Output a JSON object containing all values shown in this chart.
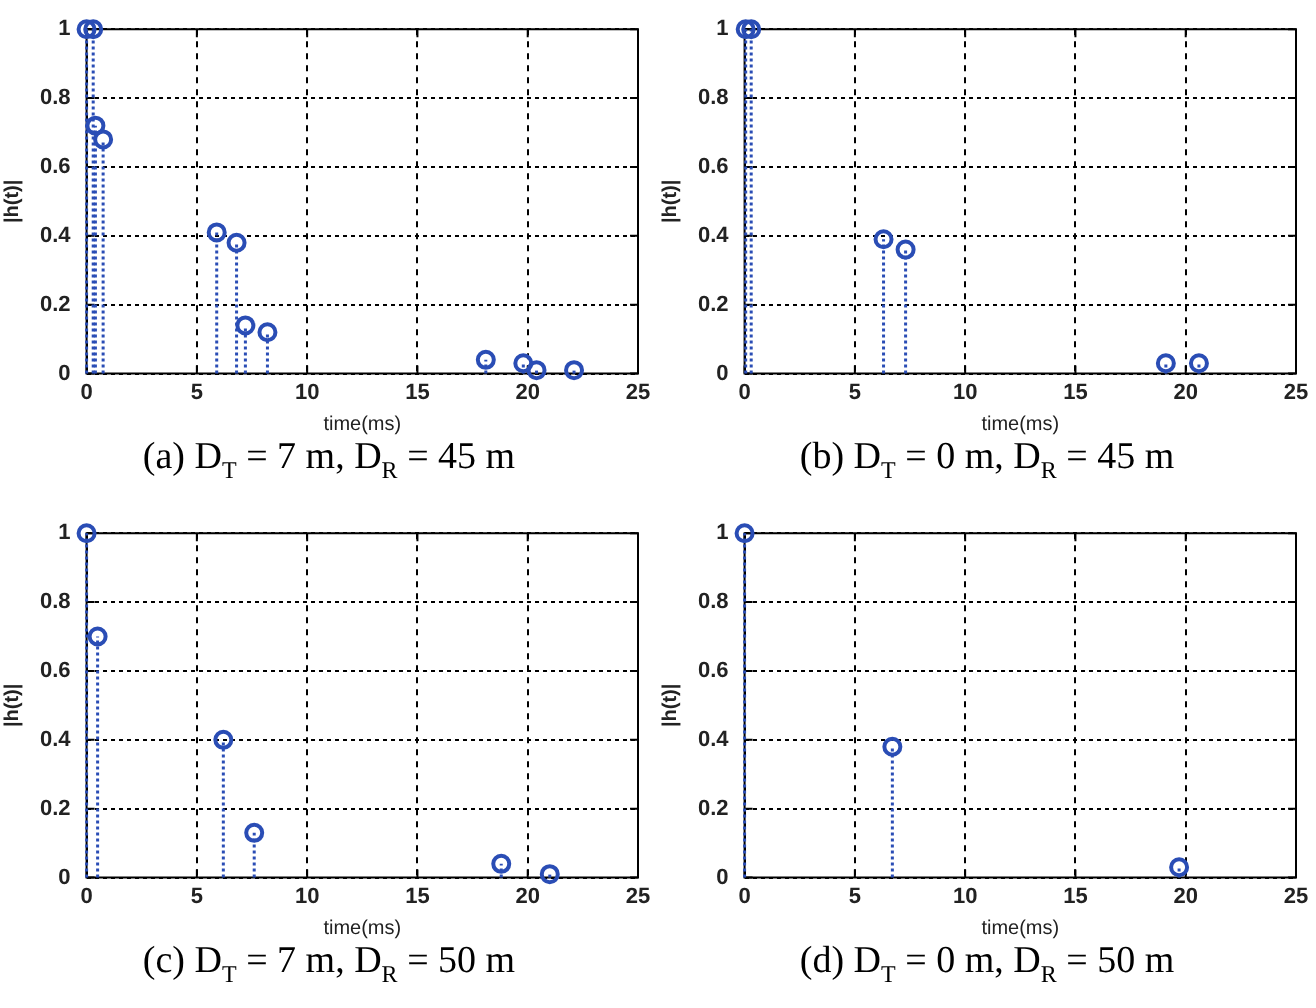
{
  "chart_data": [
    {
      "type": "lollipop",
      "title": "(a) D$_{T}$ = 7 m, D$_{R}$ = 45 m",
      "xlabel": "time(ms)",
      "ylabel": "|h(t)|",
      "x": [
        0,
        0.3,
        0.4,
        0.75,
        5.9,
        6.8,
        7.2,
        8.2,
        18.1,
        19.8,
        20.4,
        22.1
      ],
      "values": [
        1,
        1,
        0.72,
        0.68,
        0.41,
        0.38,
        0.14,
        0.12,
        0.04,
        0.03,
        0.01,
        0.01
      ],
      "color": "#2a4db5",
      "xlim": [
        0,
        25
      ],
      "ylim": [
        0,
        1
      ],
      "xticks": [
        0,
        5,
        10,
        15,
        20,
        25
      ],
      "yticks": [
        0,
        0.2,
        0.4,
        0.6,
        0.8,
        1
      ],
      "grid": true,
      "marker": "circle",
      "line_style": "dotted"
    },
    {
      "type": "lollipop",
      "title": "(b) D$_{T}$ = 0 m, D$_{R}$ = 45 m",
      "xlabel": "time(ms)",
      "ylabel": "|h(t)|",
      "x": [
        0.05,
        0.3,
        6.3,
        7.3,
        19.1,
        20.6
      ],
      "values": [
        1,
        1,
        0.39,
        0.36,
        0.03,
        0.03
      ],
      "color": "#2a4db5",
      "xlim": [
        0,
        25
      ],
      "ylim": [
        0,
        1
      ],
      "xticks": [
        0,
        5,
        10,
        15,
        20,
        25
      ],
      "yticks": [
        0,
        0.2,
        0.4,
        0.6,
        0.8,
        1
      ],
      "grid": true,
      "marker": "circle",
      "line_style": "dotted"
    },
    {
      "type": "lollipop",
      "title": "(c) D$_{T}$ = 7 m, D$_{R}$ = 50 m",
      "xlabel": "time(ms)",
      "ylabel": "|h(t)|",
      "x": [
        0,
        0.5,
        6.2,
        7.6,
        18.8,
        21
      ],
      "values": [
        1,
        0.7,
        0.4,
        0.13,
        0.04,
        0.01
      ],
      "color": "#2a4db5",
      "xlim": [
        0,
        25
      ],
      "ylim": [
        0,
        1
      ],
      "xticks": [
        0,
        5,
        10,
        15,
        20,
        25
      ],
      "yticks": [
        0,
        0.2,
        0.4,
        0.6,
        0.8,
        1
      ],
      "grid": true,
      "marker": "circle",
      "line_style": "dotted"
    },
    {
      "type": "lollipop",
      "title": "(d) D$_{T}$ = 0 m, D$_{R}$ = 50 m",
      "xlabel": "time(ms)",
      "ylabel": "|h(t)|",
      "x": [
        0,
        6.7,
        19.7
      ],
      "values": [
        1,
        0.38,
        0.03
      ],
      "color": "#2a4db5",
      "xlim": [
        0,
        25
      ],
      "ylim": [
        0,
        1
      ],
      "xticks": [
        0,
        5,
        10,
        15,
        20,
        25
      ],
      "yticks": [
        0,
        0.2,
        0.4,
        0.6,
        0.8,
        1
      ],
      "grid": true,
      "marker": "circle",
      "line_style": "dotted"
    }
  ]
}
